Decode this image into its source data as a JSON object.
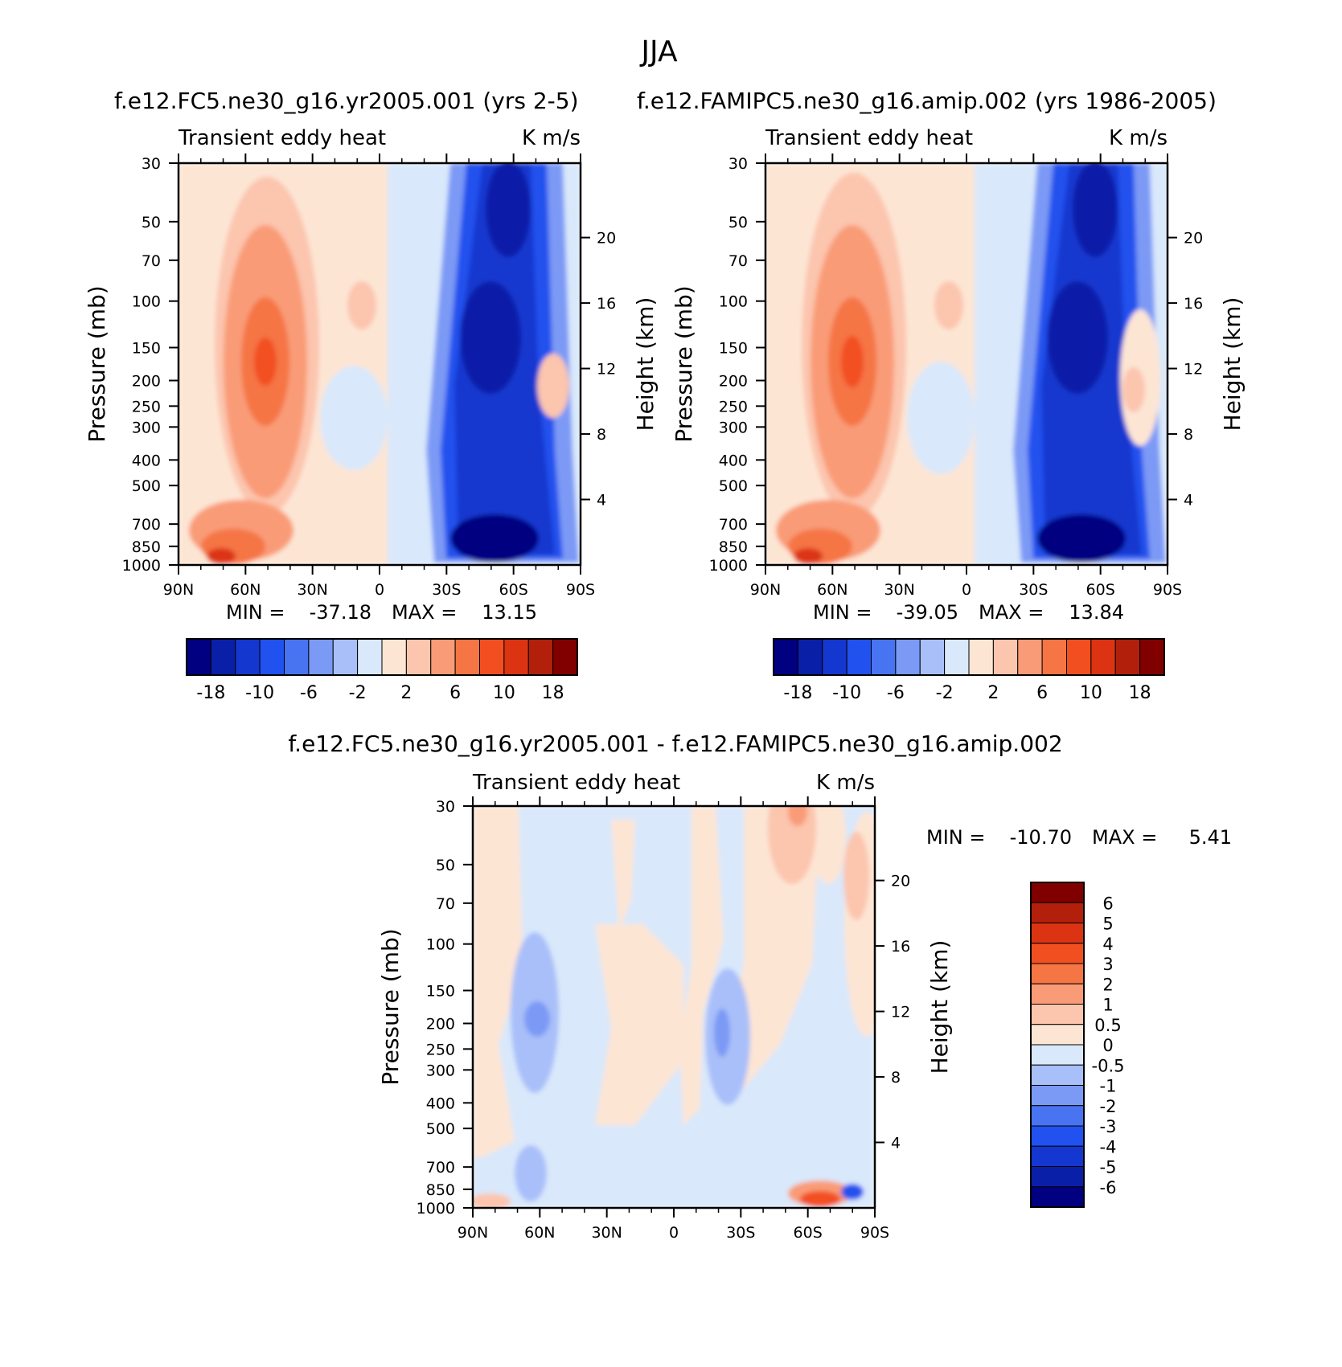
{
  "title": "JJA",
  "color_scale": [
    "#000080",
    "#0a1fa8",
    "#1437cf",
    "#2151ee",
    "#4874f2",
    "#7b9af5",
    "#a9bff9",
    "#d9e8fb",
    "#fde5d4",
    "#fcc5ae",
    "#f99b77",
    "#f57544",
    "#f24f21",
    "#dc3412",
    "#b2200c",
    "#800000"
  ],
  "panels": [
    {
      "id": "left",
      "title": "f.e12.FC5.ne30_g16.yr2005.001 (yrs 2-5)",
      "subtitle": "Transient eddy heat",
      "units": "K m/s",
      "ylabel": "Pressure (mb)",
      "ylabel_right": "Height (km)",
      "pressure_ticks": [
        "30",
        "50",
        "70",
        "100",
        "150",
        "200",
        "250",
        "300",
        "400",
        "500",
        "700",
        "850",
        "1000"
      ],
      "height_ticks": [
        "20",
        "16",
        "12",
        "8",
        "4"
      ],
      "lat_ticks": [
        "90N",
        "60N",
        "30N",
        "0",
        "30S",
        "60S",
        "90S"
      ],
      "min_label": "MIN =",
      "min_value": "-37.18",
      "max_label": "MAX =",
      "max_value": "13.15",
      "colorbar_labels": [
        "-18",
        "-10",
        "-6",
        "-2",
        "2",
        "6",
        "10",
        "18"
      ]
    },
    {
      "id": "right",
      "title": "f.e12.FAMIPC5.ne30_g16.amip.002 (yrs 1986-2005)",
      "subtitle": "Transient eddy heat",
      "units": "K m/s",
      "ylabel": "Pressure (mb)",
      "ylabel_right": "Height (km)",
      "pressure_ticks": [
        "30",
        "50",
        "70",
        "100",
        "150",
        "200",
        "250",
        "300",
        "400",
        "500",
        "700",
        "850",
        "1000"
      ],
      "height_ticks": [
        "20",
        "16",
        "12",
        "8",
        "4"
      ],
      "lat_ticks": [
        "90N",
        "60N",
        "30N",
        "0",
        "30S",
        "60S",
        "90S"
      ],
      "min_label": "MIN =",
      "min_value": "-39.05",
      "max_label": "MAX =",
      "max_value": "13.84",
      "colorbar_labels": [
        "-18",
        "-10",
        "-6",
        "-2",
        "2",
        "6",
        "10",
        "18"
      ]
    },
    {
      "id": "diff",
      "title": "f.e12.FC5.ne30_g16.yr2005.001 - f.e12.FAMIPC5.ne30_g16.amip.002",
      "subtitle": "Transient eddy heat",
      "units": "K m/s",
      "ylabel": "Pressure (mb)",
      "ylabel_right": "Height (km)",
      "pressure_ticks": [
        "30",
        "50",
        "70",
        "100",
        "150",
        "200",
        "250",
        "300",
        "400",
        "500",
        "700",
        "850",
        "1000"
      ],
      "height_ticks": [
        "20",
        "16",
        "12",
        "8",
        "4"
      ],
      "lat_ticks": [
        "90N",
        "60N",
        "30N",
        "0",
        "30S",
        "60S",
        "90S"
      ],
      "min_label": "MIN =",
      "min_value": "-10.70",
      "max_label": "MAX =",
      "max_value": "5.41",
      "colorbar_labels": [
        "6",
        "5",
        "4",
        "3",
        "2",
        "1",
        "0.5",
        "0",
        "-0.5",
        "-1",
        "-2",
        "-3",
        "-4",
        "-5",
        "-6"
      ]
    }
  ],
  "chart_data": [
    {
      "type": "heatmap",
      "title": "f.e12.FC5.ne30_g16.yr2005.001 (yrs 2-5) — Transient eddy heat (K m/s), JJA",
      "x": "latitude 90N to 90S",
      "y": "pressure 30 to 1000 mb",
      "ylim": [
        30,
        1000
      ],
      "colorbar_levels": [
        -18,
        -14,
        -10,
        -8,
        -6,
        -4,
        -2,
        0,
        2,
        4,
        6,
        8,
        10,
        14,
        18
      ],
      "min": -37.18,
      "max": 13.15
    },
    {
      "type": "heatmap",
      "title": "f.e12.FAMIPC5.ne30_g16.amip.002 (yrs 1986-2005) — Transient eddy heat (K m/s), JJA",
      "x": "latitude 90N to 90S",
      "y": "pressure 30 to 1000 mb",
      "ylim": [
        30,
        1000
      ],
      "colorbar_levels": [
        -18,
        -14,
        -10,
        -8,
        -6,
        -4,
        -2,
        0,
        2,
        4,
        6,
        8,
        10,
        14,
        18
      ],
      "min": -39.05,
      "max": 13.84
    },
    {
      "type": "heatmap",
      "title": "f.e12.FC5.ne30_g16.yr2005.001 - f.e12.FAMIPC5.ne30_g16.amip.002 — Transient eddy heat (K m/s), JJA",
      "x": "latitude 90N to 90S",
      "y": "pressure 30 to 1000 mb",
      "ylim": [
        30,
        1000
      ],
      "colorbar_levels": [
        -6,
        -5,
        -4,
        -3,
        -2,
        -1,
        -0.5,
        0,
        0.5,
        1,
        2,
        3,
        4,
        5,
        6
      ],
      "min": -10.7,
      "max": 5.41
    }
  ]
}
